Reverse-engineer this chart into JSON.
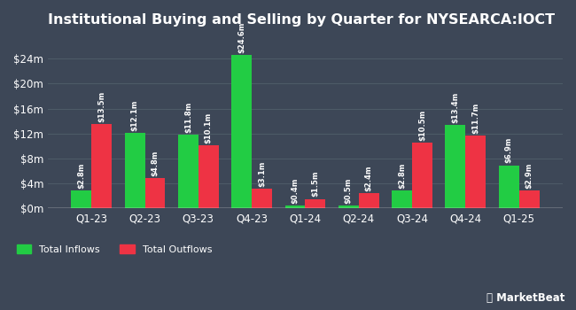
{
  "title": "Institutional Buying and Selling by Quarter for NYSEARCA:IOCT",
  "categories": [
    "Q1-23",
    "Q2-23",
    "Q3-23",
    "Q4-23",
    "Q1-24",
    "Q2-24",
    "Q3-24",
    "Q4-24",
    "Q1-25"
  ],
  "inflows": [
    2.8,
    12.1,
    11.8,
    24.6,
    0.4,
    0.5,
    2.8,
    13.4,
    6.9
  ],
  "outflows": [
    13.5,
    4.8,
    10.1,
    3.1,
    1.5,
    2.4,
    10.5,
    11.7,
    2.9
  ],
  "inflow_labels": [
    "$2.8m",
    "$12.1m",
    "$11.8m",
    "$24.6m",
    "$0.4m",
    "$0.5m",
    "$2.8m",
    "$13.4m",
    "$6.9m"
  ],
  "outflow_labels": [
    "$13.5m",
    "$4.8m",
    "$10.1m",
    "$3.1m",
    "$1.5m",
    "$2.4m",
    "$10.5m",
    "$11.7m",
    "$2.9m"
  ],
  "inflow_color": "#22cc44",
  "outflow_color": "#ee3344",
  "background_color": "#3d4757",
  "text_color": "#ffffff",
  "grid_color": "#4d5a67",
  "yticks": [
    0,
    4,
    8,
    12,
    16,
    20,
    24
  ],
  "ytick_labels": [
    "$0m",
    "$4m",
    "$8m",
    "$12m",
    "$16m",
    "$20m",
    "$24m"
  ],
  "ylim": [
    0,
    28
  ],
  "legend_inflow": "Total Inflows",
  "legend_outflow": "Total Outflows",
  "bar_width": 0.38,
  "label_fontsize": 6.0,
  "title_fontsize": 11.5,
  "axis_fontsize": 8.5
}
